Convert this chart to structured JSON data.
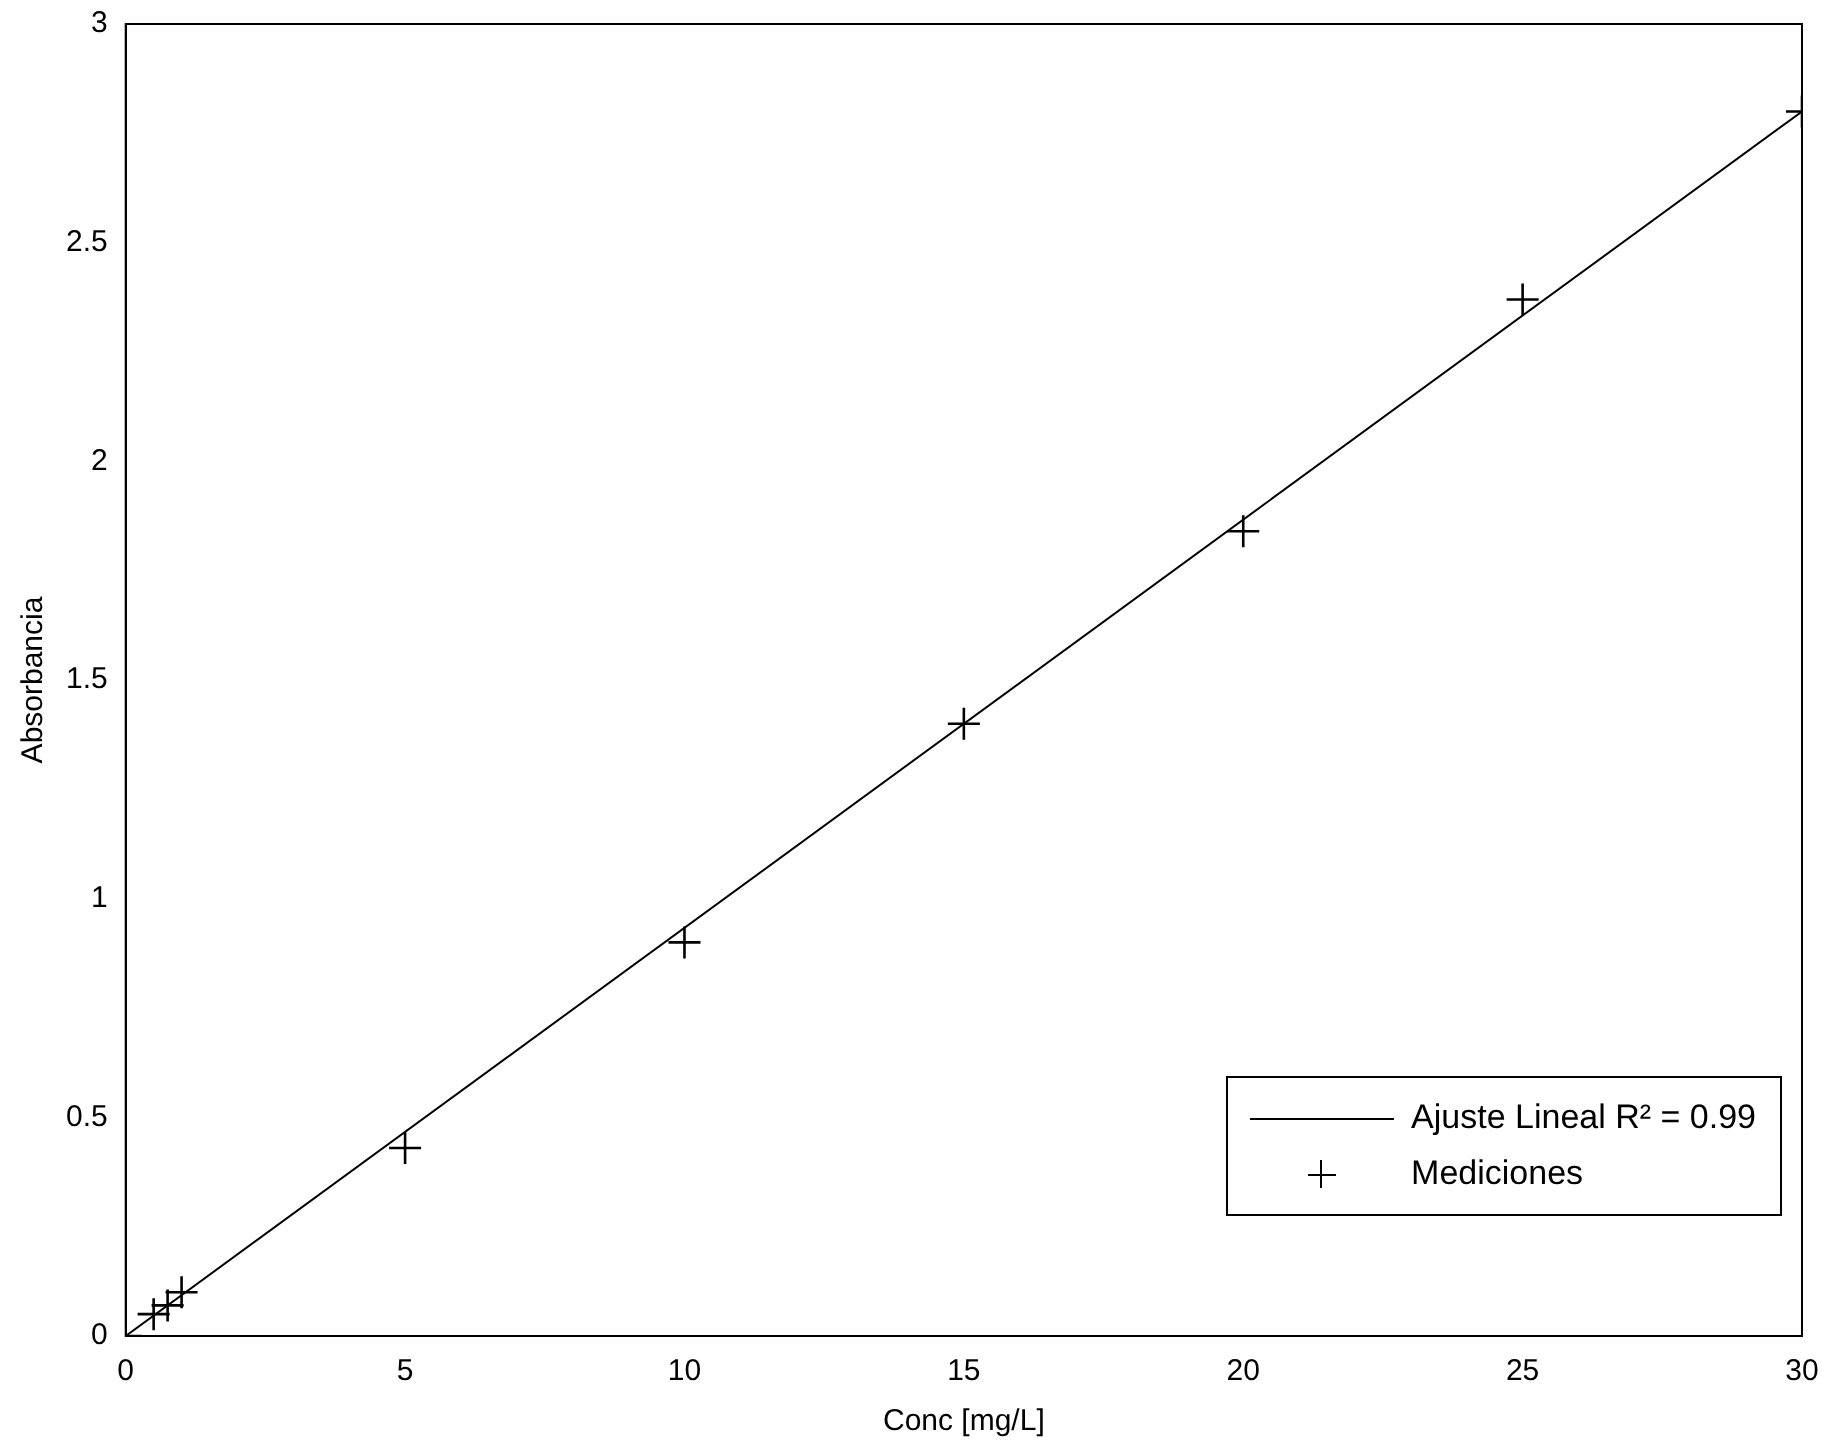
{
  "chart_data": {
    "type": "scatter",
    "xlabel": "Conc [mg/L]",
    "ylabel": "Absorbancia",
    "xlim": [
      0,
      30
    ],
    "xticks": [
      0,
      5,
      10,
      15,
      20,
      25,
      30
    ],
    "ylim": [
      0,
      3
    ],
    "yticks": [
      0,
      0.5,
      1,
      1.5,
      2,
      2.5,
      3
    ],
    "grid": false,
    "legend": "bottom right",
    "series": [
      {
        "name": "Ajuste Lineal R² = 0.99",
        "type": "line",
        "color": "#000000",
        "marker": "none",
        "line_style": "solid",
        "x": [
          0,
          30
        ],
        "values": [
          0,
          2.8
        ]
      },
      {
        "name": "Mediciones",
        "type": "scatter",
        "color": "#000000",
        "marker": "cross",
        "x": [
          0,
          0.5,
          0.75,
          1,
          5,
          10,
          15,
          20,
          25,
          30
        ],
        "values": [
          0,
          0.05,
          0.07,
          0.1,
          0.43,
          0.9,
          1.4,
          1.84,
          2.37,
          2.8
        ]
      }
    ]
  }
}
